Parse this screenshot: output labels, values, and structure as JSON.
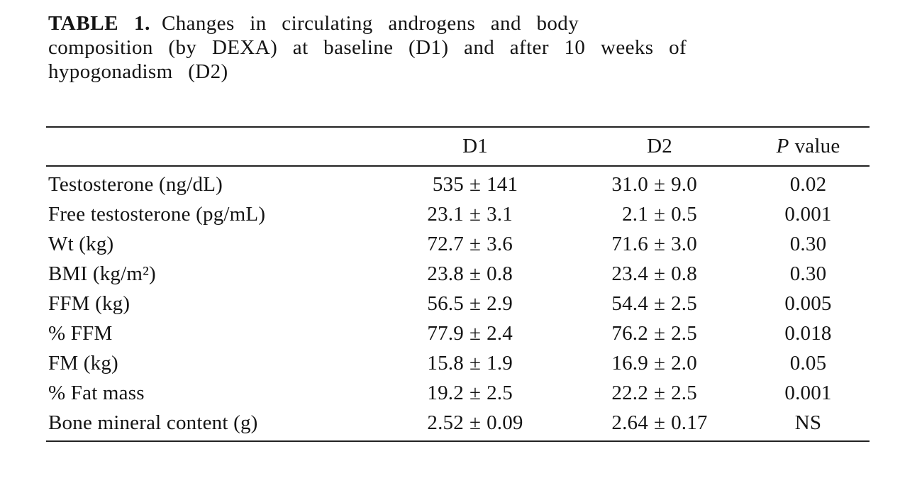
{
  "page": {
    "background": "#ffffff",
    "text_color": "#141414",
    "rule_color": "#222222"
  },
  "caption": {
    "label": "TABLE 1.",
    "title_line1": "Changes in circulating androgens and body",
    "title_line2": "composition (by DEXA) at baseline (D1) and after 10 weeks of",
    "title_line3": "hypogonadism (D2)"
  },
  "table": {
    "plus_minus": "±",
    "header": {
      "d1": "D1",
      "d2": "D2",
      "p_italic": "P",
      "p_rest": "value"
    },
    "rows": [
      {
        "label": "Testosterone (ng/dL)",
        "d1_mean": "535",
        "d1_sd": "141",
        "d2_mean": "31.0",
        "d2_sd": "9.0",
        "p": "0.02"
      },
      {
        "label": "Free testosterone (pg/mL)",
        "d1_mean": "23.1",
        "d1_sd": "3.1",
        "d2_mean": "2.1",
        "d2_sd": "0.5",
        "p": "0.001"
      },
      {
        "label": "Wt (kg)",
        "d1_mean": "72.7",
        "d1_sd": "3.6",
        "d2_mean": "71.6",
        "d2_sd": "3.0",
        "p": "0.30"
      },
      {
        "label": "BMI (kg/m²)",
        "d1_mean": "23.8",
        "d1_sd": "0.8",
        "d2_mean": "23.4",
        "d2_sd": "0.8",
        "p": "0.30"
      },
      {
        "label": "FFM (kg)",
        "d1_mean": "56.5",
        "d1_sd": "2.9",
        "d2_mean": "54.4",
        "d2_sd": "2.5",
        "p": "0.005"
      },
      {
        "label": "% FFM",
        "d1_mean": "77.9",
        "d1_sd": "2.4",
        "d2_mean": "76.2",
        "d2_sd": "2.5",
        "p": "0.018"
      },
      {
        "label": "FM (kg)",
        "d1_mean": "15.8",
        "d1_sd": "1.9",
        "d2_mean": "16.9",
        "d2_sd": "2.0",
        "p": "0.05"
      },
      {
        "label": "% Fat mass",
        "d1_mean": "19.2",
        "d1_sd": "2.5",
        "d2_mean": "22.2",
        "d2_sd": "2.5",
        "p": "0.001"
      },
      {
        "label": "Bone mineral content (g)",
        "d1_mean": "2.52",
        "d1_sd": "0.09",
        "d2_mean": "2.64",
        "d2_sd": "0.17",
        "p": "NS"
      }
    ]
  },
  "chart_data": {
    "type": "table",
    "title": "TABLE 1. Changes in circulating androgens and body composition (by DEXA) at baseline (D1) and after 10 weeks of hypogonadism (D2)",
    "columns": [
      "Measure",
      "D1",
      "D2",
      "P value"
    ],
    "rows": [
      [
        "Testosterone (ng/dL)",
        "535 ± 141",
        "31.0 ± 9.0",
        "0.02"
      ],
      [
        "Free testosterone (pg/mL)",
        "23.1 ± 3.1",
        "2.1 ± 0.5",
        "0.001"
      ],
      [
        "Wt (kg)",
        "72.7 ± 3.6",
        "71.6 ± 3.0",
        "0.30"
      ],
      [
        "BMI (kg/m²)",
        "23.8 ± 0.8",
        "23.4 ± 0.8",
        "0.30"
      ],
      [
        "FFM (kg)",
        "56.5 ± 2.9",
        "54.4 ± 2.5",
        "0.005"
      ],
      [
        "% FFM",
        "77.9 ± 2.4",
        "76.2 ± 2.5",
        "0.018"
      ],
      [
        "FM (kg)",
        "15.8 ± 1.9",
        "16.9 ± 2.0",
        "0.05"
      ],
      [
        "% Fat mass",
        "19.2 ± 2.5",
        "22.2 ± 2.5",
        "0.001"
      ],
      [
        "Bone mineral content (g)",
        "2.52 ± 0.09",
        "2.64 ± 0.17",
        "NS"
      ]
    ]
  }
}
